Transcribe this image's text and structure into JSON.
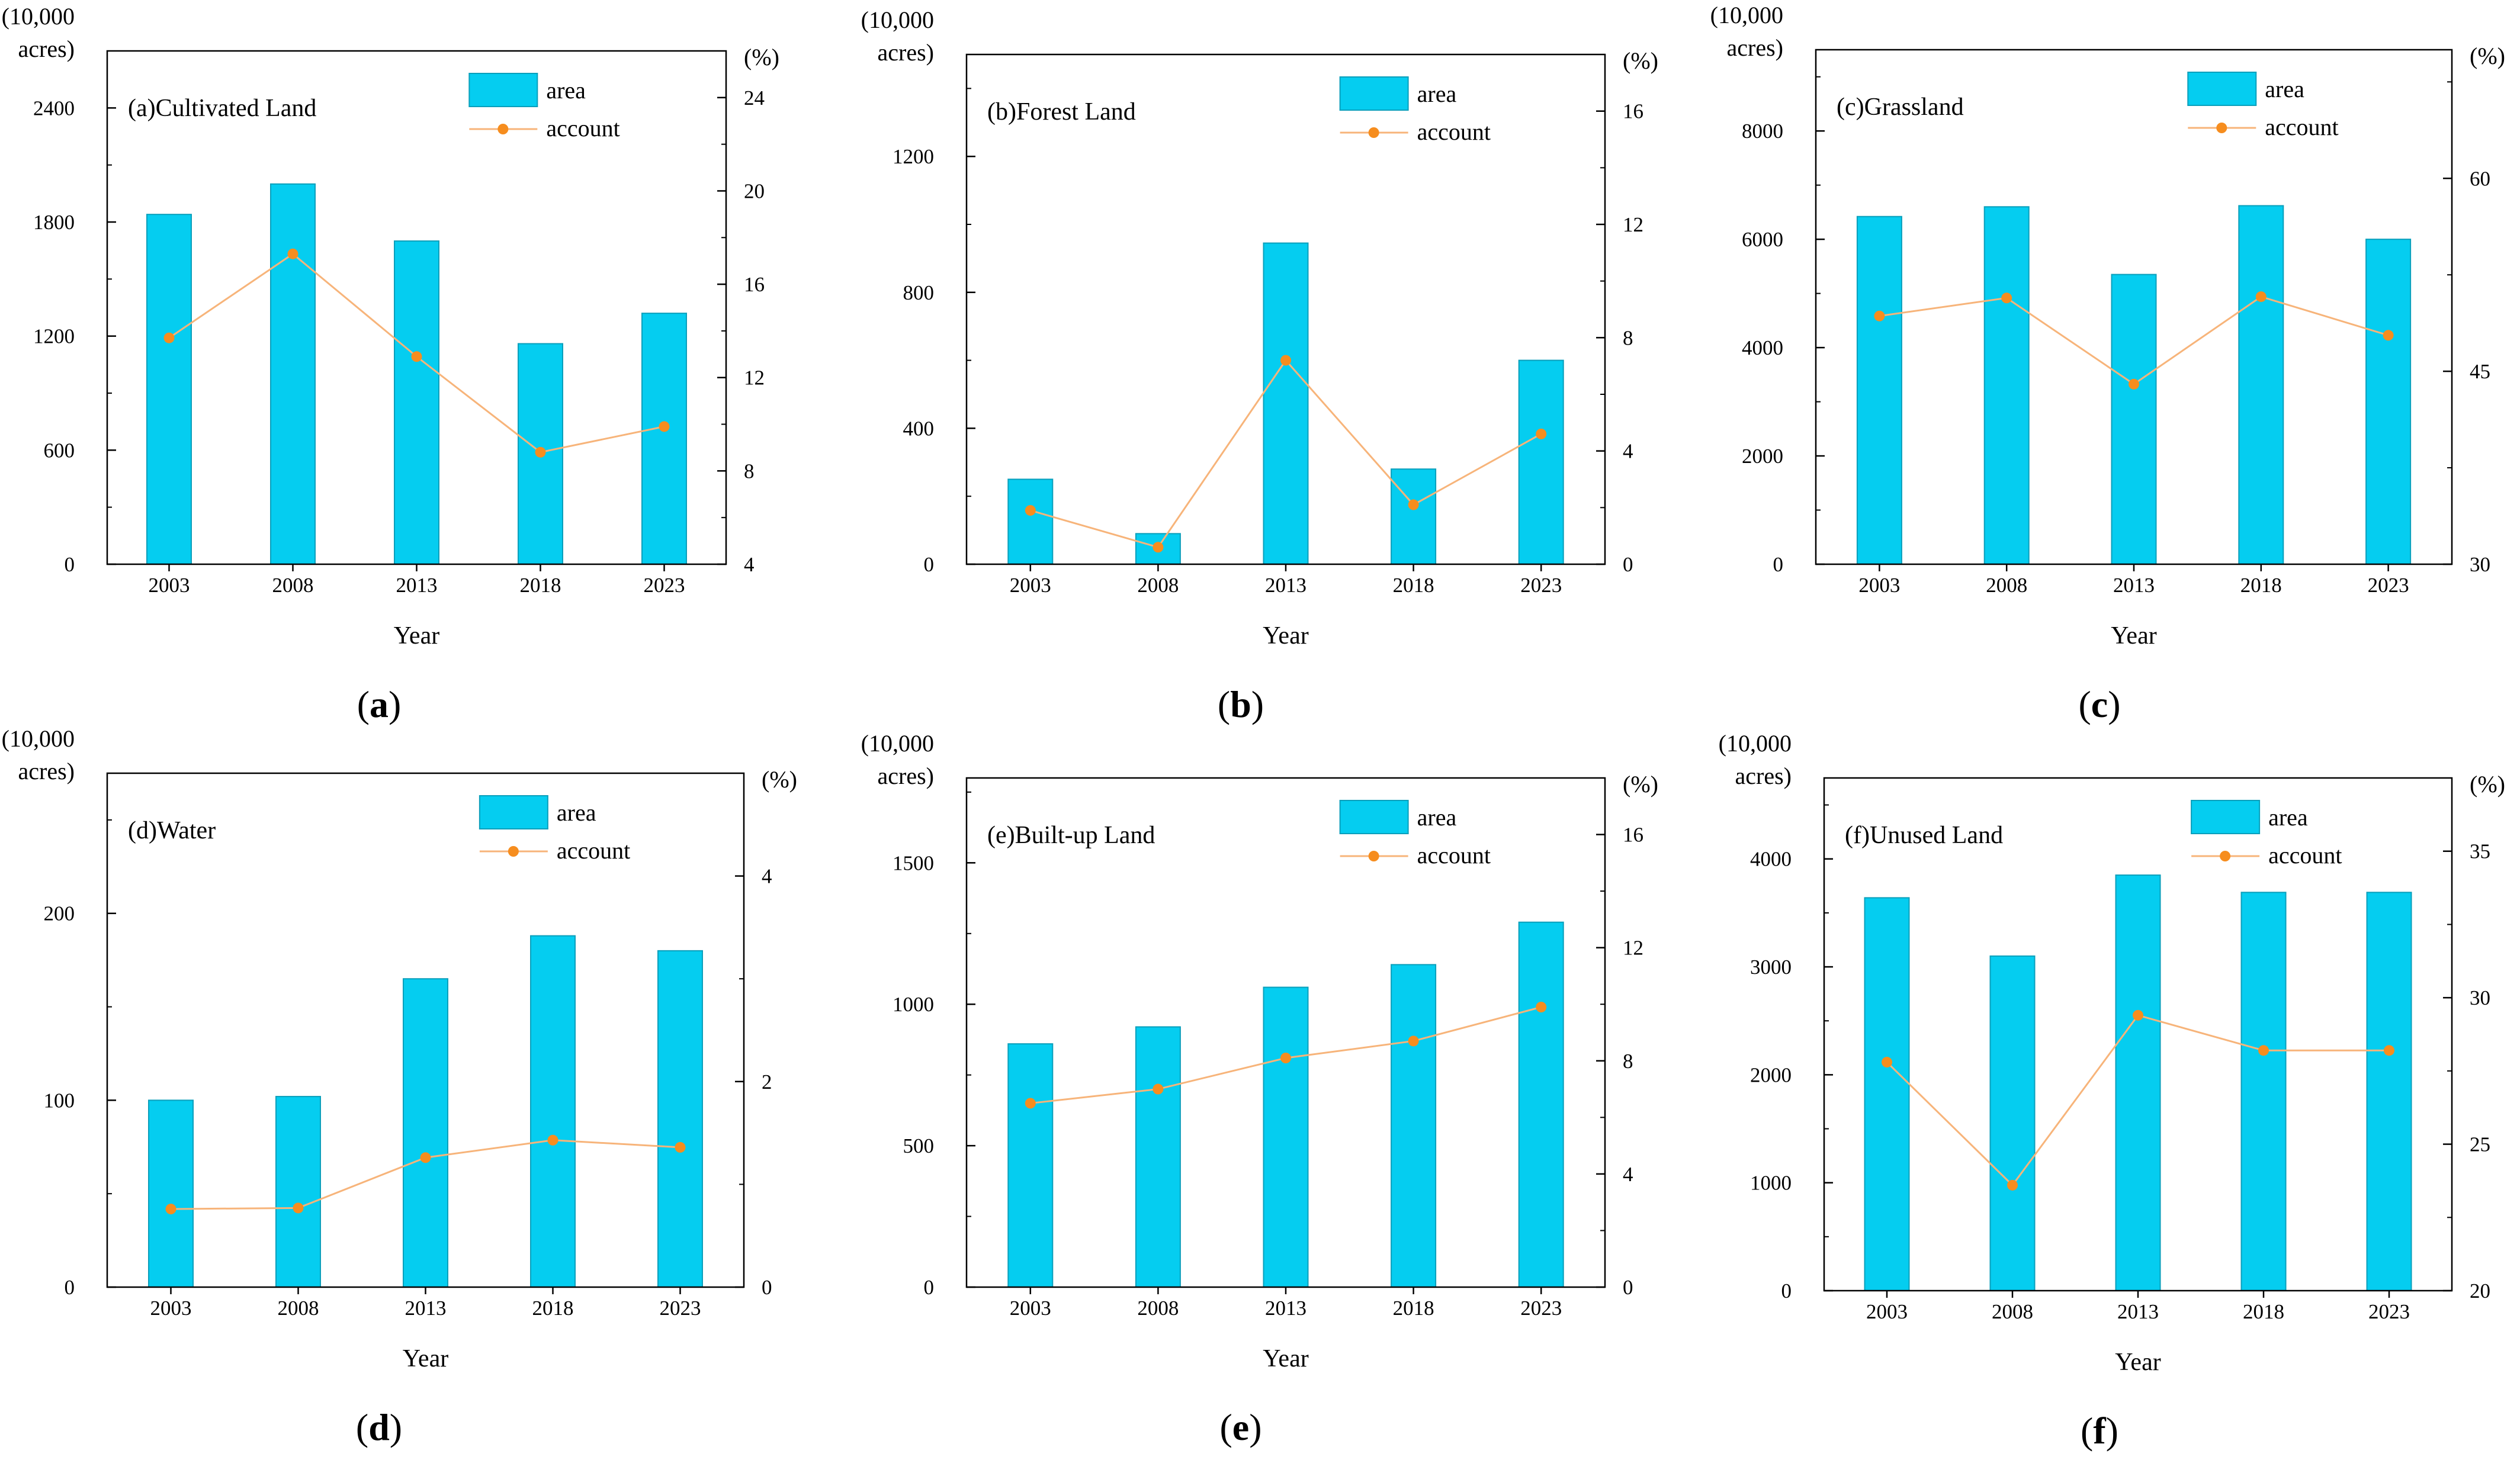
{
  "chart_data": [
    {
      "type": "bar+line",
      "panel_label": "a",
      "title": "(a)Cultivated Land",
      "xlabel": "Year",
      "y_unit_left_line1": "(10,000",
      "y_unit_left_line2": "acres)",
      "y_unit_right": "(%)",
      "legend": {
        "bar": "area",
        "line": "account"
      },
      "categories": [
        "2003",
        "2008",
        "2013",
        "2018",
        "2023"
      ],
      "area": [
        1840,
        2000,
        1700,
        1160,
        1320
      ],
      "account": [
        13.7,
        17.3,
        12.9,
        8.8,
        9.9
      ],
      "ylim_left": [
        0,
        2700
      ],
      "yticks_left": [
        0,
        600,
        1200,
        1800,
        2400
      ],
      "ylim_right": [
        4,
        26
      ],
      "yticks_right": [
        4,
        8,
        12,
        16,
        20,
        24
      ]
    },
    {
      "type": "bar+line",
      "panel_label": "b",
      "title": "(b)Forest Land",
      "xlabel": "Year",
      "y_unit_left_line1": "(10,000",
      "y_unit_left_line2": "acres)",
      "y_unit_right": "(%)",
      "legend": {
        "bar": "area",
        "line": "account"
      },
      "categories": [
        "2003",
        "2008",
        "2013",
        "2018",
        "2023"
      ],
      "area": [
        250,
        90,
        945,
        280,
        600
      ],
      "account": [
        1.9,
        0.6,
        7.2,
        2.1,
        4.6
      ],
      "ylim_left": [
        0,
        1500
      ],
      "yticks_left": [
        0,
        400,
        800,
        1200
      ],
      "ylim_right": [
        0,
        18
      ],
      "yticks_right": [
        0,
        4,
        8,
        12,
        16
      ]
    },
    {
      "type": "bar+line",
      "panel_label": "c",
      "title": "(c)Grassland",
      "xlabel": "Year",
      "y_unit_left_line1": "(10,000",
      "y_unit_left_line2": "acres)",
      "y_unit_right": "(%)",
      "legend": {
        "bar": "area",
        "line": "account"
      },
      "categories": [
        "2003",
        "2008",
        "2013",
        "2018",
        "2023"
      ],
      "area": [
        6420,
        6600,
        5350,
        6620,
        6000
      ],
      "account": [
        49.3,
        50.7,
        44.0,
        50.8,
        47.8
      ],
      "ylim_left": [
        0,
        9500
      ],
      "yticks_left": [
        0,
        2000,
        4000,
        6000,
        8000
      ],
      "ylim_right": [
        30,
        70
      ],
      "yticks_right": [
        30,
        45,
        60
      ]
    },
    {
      "type": "bar+line",
      "panel_label": "d",
      "title": "(d)Water",
      "xlabel": "Year",
      "y_unit_left_line1": "(10,000",
      "y_unit_left_line2": "acres)",
      "y_unit_right": "(%)",
      "legend": {
        "bar": "area",
        "line": "account"
      },
      "categories": [
        "2003",
        "2008",
        "2013",
        "2018",
        "2023"
      ],
      "area": [
        100,
        102,
        165,
        188,
        180
      ],
      "account": [
        0.76,
        0.77,
        1.26,
        1.43,
        1.36
      ],
      "ylim_left": [
        0,
        275
      ],
      "yticks_left": [
        0,
        100,
        200
      ],
      "ylim_right": [
        0,
        5
      ],
      "yticks_right": [
        0,
        2,
        4
      ]
    },
    {
      "type": "bar+line",
      "panel_label": "e",
      "title": "(e)Built-up Land",
      "xlabel": "Year",
      "y_unit_left_line1": "(10,000",
      "y_unit_left_line2": "acres)",
      "y_unit_right": "(%)",
      "legend": {
        "bar": "area",
        "line": "account"
      },
      "categories": [
        "2003",
        "2008",
        "2013",
        "2018",
        "2023"
      ],
      "area": [
        860,
        920,
        1060,
        1140,
        1290
      ],
      "account": [
        6.5,
        7.0,
        8.1,
        8.7,
        9.9
      ],
      "ylim_left": [
        0,
        1800
      ],
      "yticks_left": [
        0,
        500,
        1000,
        1500
      ],
      "ylim_right": [
        0,
        18
      ],
      "yticks_right": [
        0,
        4,
        8,
        12,
        16
      ]
    },
    {
      "type": "bar+line",
      "panel_label": "f",
      "title": "(f)Unused Land",
      "xlabel": "Year",
      "y_unit_left_line1": "(10,000",
      "y_unit_left_line2": "acres)",
      "y_unit_right": "(%)",
      "legend": {
        "bar": "area",
        "line": "account"
      },
      "categories": [
        "2003",
        "2008",
        "2013",
        "2018",
        "2023"
      ],
      "area": [
        3640,
        3100,
        3850,
        3690,
        3690
      ],
      "account": [
        27.8,
        23.6,
        29.4,
        28.2,
        28.2
      ],
      "ylim_left": [
        0,
        4750
      ],
      "yticks_left": [
        0,
        1000,
        2000,
        3000,
        4000
      ],
      "ylim_right": [
        20,
        37.5
      ],
      "yticks_right": [
        20,
        25,
        30,
        35
      ]
    }
  ],
  "colors": {
    "bar_fill": "#05cdf0",
    "bar_stroke": "#0a9fbb",
    "line": "#f7b47a",
    "marker": "#f68d1e",
    "axis": "#000000"
  }
}
